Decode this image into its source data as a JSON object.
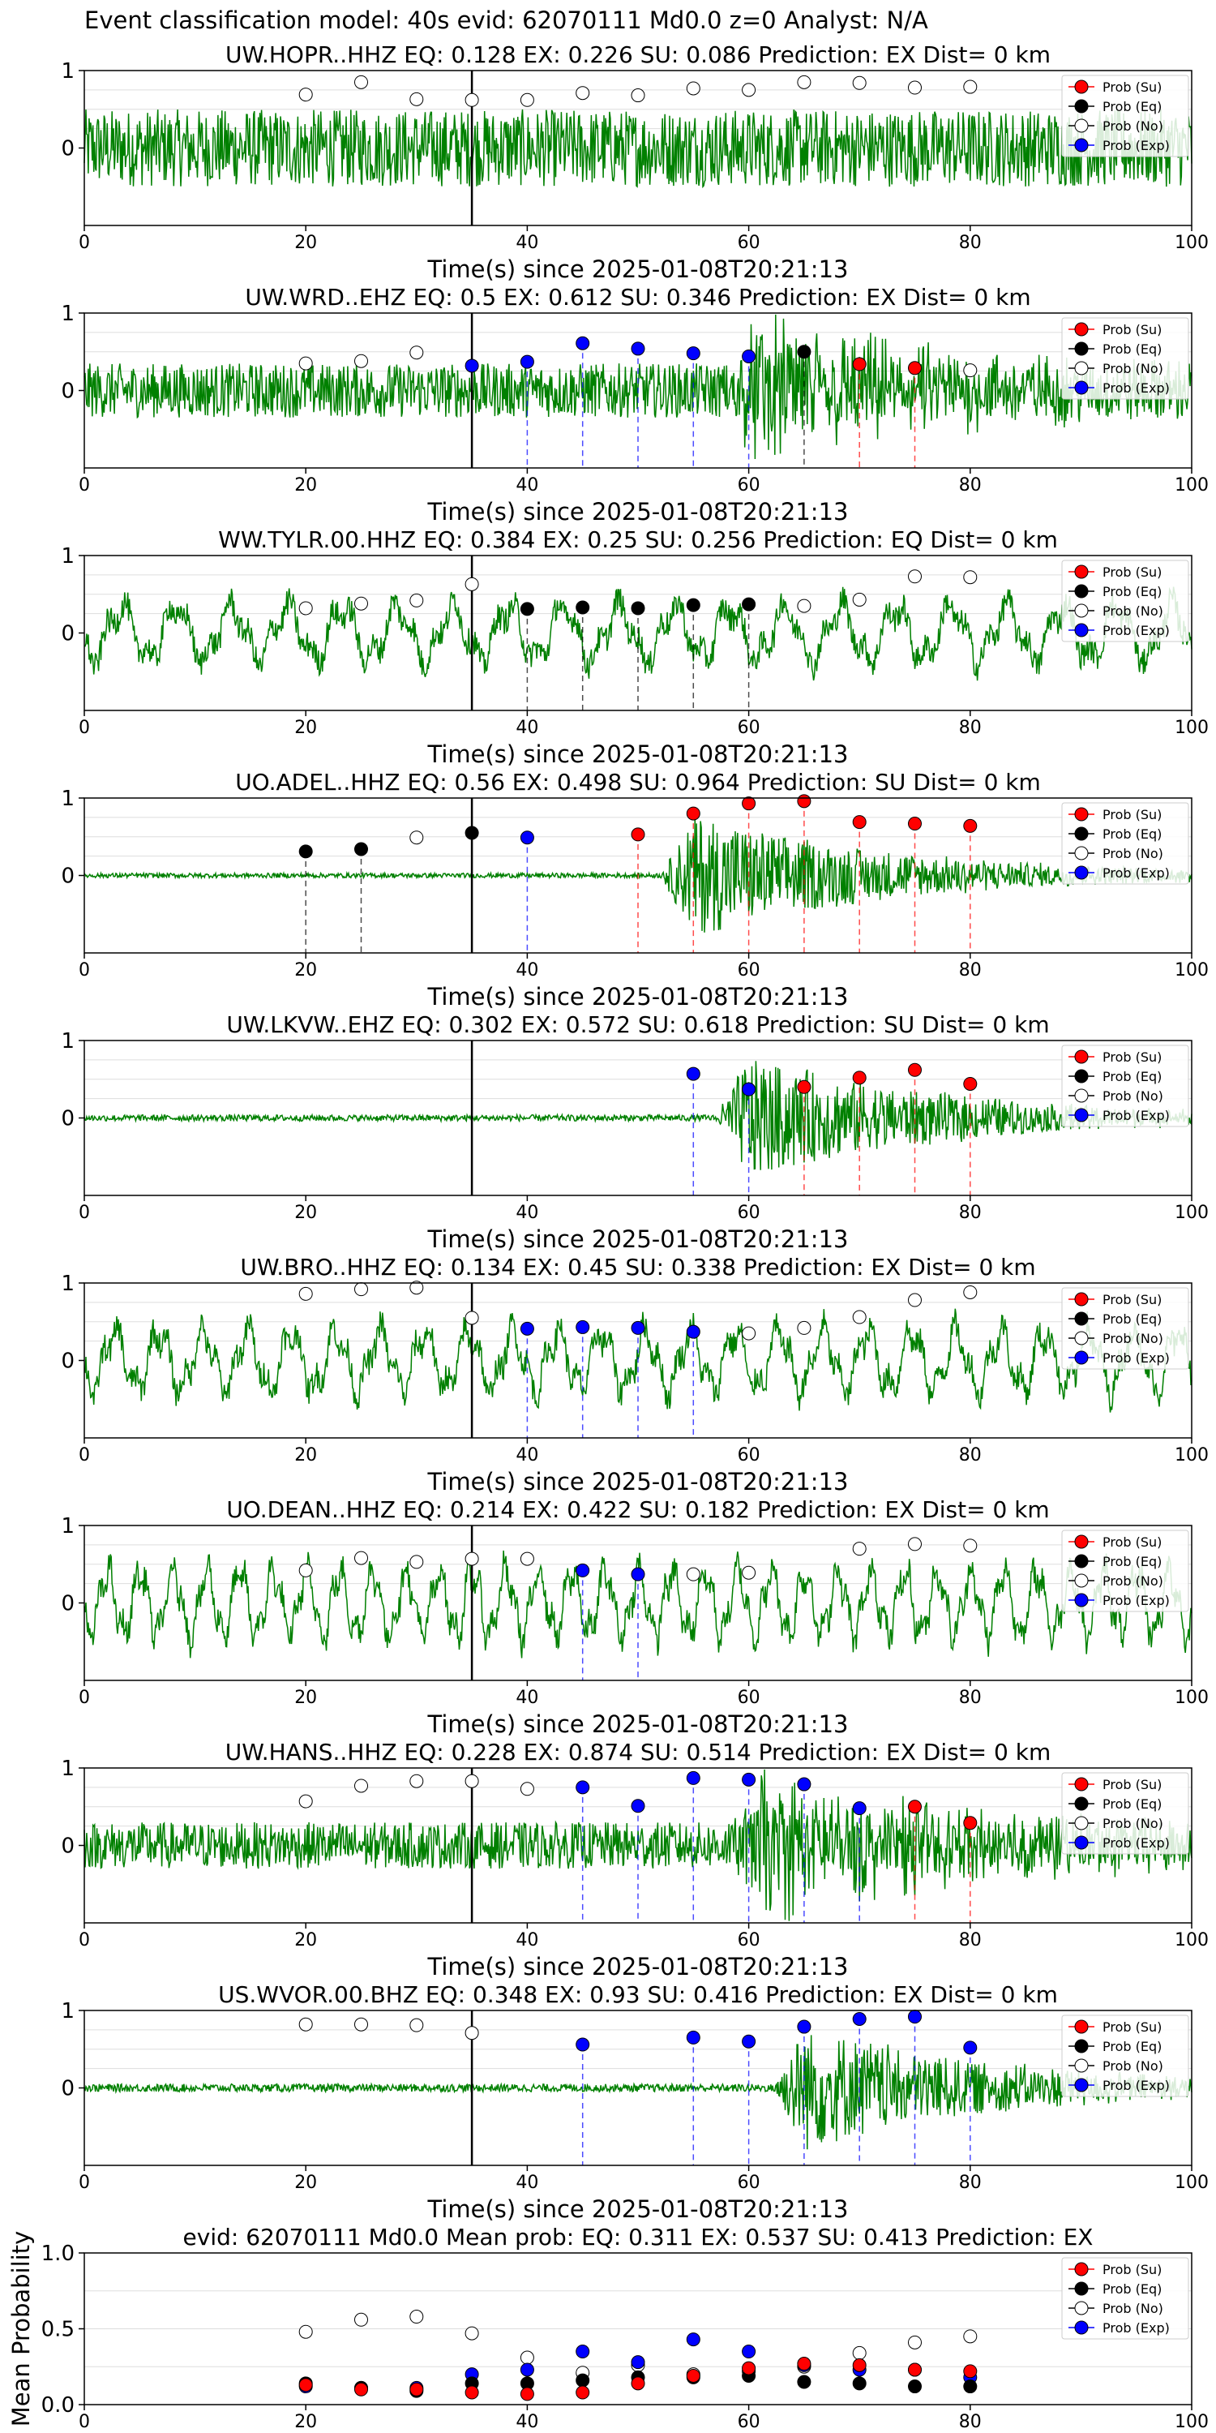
{
  "figure_title": "Event classification model: 40s evid: 62070111 Md0.0 z=0 Analyst: N/A",
  "colors": {
    "su": "#ff0000",
    "eq": "#000000",
    "no": "#ffffff",
    "exp": "#0000ff",
    "trace": "#008000",
    "grid": "#dddddd",
    "pick": "#000000"
  },
  "legend": [
    "Prob (Su)",
    "Prob (Eq)",
    "Prob (No)",
    "Prob (Exp)"
  ],
  "chart_data": [
    {
      "type": "line",
      "title": "UW.HOPR..HHZ   EQ: 0.128  EX: 0.226  SU: 0.086   Prediction: EX    Dist= 0 km",
      "xlabel": "Time(s) since 2025-01-08T20:21:13",
      "ylabel": "",
      "xlim": [
        0,
        100
      ],
      "ylim": [
        -1,
        1
      ],
      "xticks": [
        "0",
        "20",
        "40",
        "60",
        "80",
        "100"
      ],
      "yticks": [
        "0",
        "1"
      ],
      "waveform": {
        "style": "noisy",
        "amplitude": 0.5,
        "period_s": 0,
        "onset_s": 0
      },
      "pick_time": 35,
      "points": [
        {
          "t": 20,
          "p": 0.69,
          "class": "no"
        },
        {
          "t": 25,
          "p": 0.85,
          "class": "no"
        },
        {
          "t": 30,
          "p": 0.63,
          "class": "no"
        },
        {
          "t": 35,
          "p": 0.62,
          "class": "no"
        },
        {
          "t": 40,
          "p": 0.62,
          "class": "no"
        },
        {
          "t": 45,
          "p": 0.71,
          "class": "no"
        },
        {
          "t": 50,
          "p": 0.68,
          "class": "no"
        },
        {
          "t": 55,
          "p": 0.77,
          "class": "no"
        },
        {
          "t": 60,
          "p": 0.75,
          "class": "no"
        },
        {
          "t": 65,
          "p": 0.85,
          "class": "no"
        },
        {
          "t": 70,
          "p": 0.84,
          "class": "no"
        },
        {
          "t": 75,
          "p": 0.78,
          "class": "no"
        },
        {
          "t": 80,
          "p": 0.79,
          "class": "no"
        }
      ]
    },
    {
      "type": "line",
      "title": "UW.WRD..EHZ   EQ: 0.5  EX: 0.612  SU: 0.346   Prediction: EX    Dist= 0 km",
      "xlabel": "Time(s) since 2025-01-08T20:21:13",
      "ylabel": "",
      "xlim": [
        0,
        100
      ],
      "ylim": [
        -1,
        1
      ],
      "xticks": [
        "0",
        "20",
        "40",
        "60",
        "80",
        "100"
      ],
      "yticks": [
        "0",
        "1"
      ],
      "waveform": {
        "style": "noisy",
        "amplitude": 0.35,
        "period_s": 0,
        "onset_s": 58
      },
      "pick_time": 35,
      "points": [
        {
          "t": 20,
          "p": 0.35,
          "class": "no"
        },
        {
          "t": 25,
          "p": 0.38,
          "class": "no"
        },
        {
          "t": 30,
          "p": 0.49,
          "class": "no"
        },
        {
          "t": 35,
          "p": 0.32,
          "class": "exp"
        },
        {
          "t": 40,
          "p": 0.37,
          "class": "exp"
        },
        {
          "t": 45,
          "p": 0.61,
          "class": "exp"
        },
        {
          "t": 50,
          "p": 0.54,
          "class": "exp"
        },
        {
          "t": 55,
          "p": 0.48,
          "class": "exp"
        },
        {
          "t": 60,
          "p": 0.44,
          "class": "exp"
        },
        {
          "t": 65,
          "p": 0.5,
          "class": "eq"
        },
        {
          "t": 70,
          "p": 0.34,
          "class": "su"
        },
        {
          "t": 75,
          "p": 0.29,
          "class": "su"
        },
        {
          "t": 80,
          "p": 0.26,
          "class": "no"
        }
      ]
    },
    {
      "type": "line",
      "title": "WW.TYLR.00.HHZ   EQ: 0.384  EX: 0.25  SU: 0.256   Prediction: EQ    Dist= 0 km",
      "xlabel": "Time(s) since 2025-01-08T20:21:13",
      "ylabel": "",
      "xlim": [
        0,
        100
      ],
      "ylim": [
        -1,
        1
      ],
      "xticks": [
        "0",
        "20",
        "40",
        "60",
        "80",
        "100"
      ],
      "yticks": [
        "0",
        "1"
      ],
      "waveform": {
        "style": "wave",
        "amplitude": 0.45,
        "period_s": 5,
        "onset_s": 0
      },
      "pick_time": 35,
      "points": [
        {
          "t": 20,
          "p": 0.32,
          "class": "no"
        },
        {
          "t": 25,
          "p": 0.38,
          "class": "no"
        },
        {
          "t": 30,
          "p": 0.42,
          "class": "no"
        },
        {
          "t": 35,
          "p": 0.63,
          "class": "no"
        },
        {
          "t": 40,
          "p": 0.31,
          "class": "eq"
        },
        {
          "t": 45,
          "p": 0.33,
          "class": "eq"
        },
        {
          "t": 50,
          "p": 0.32,
          "class": "eq"
        },
        {
          "t": 55,
          "p": 0.36,
          "class": "eq"
        },
        {
          "t": 60,
          "p": 0.37,
          "class": "eq"
        },
        {
          "t": 65,
          "p": 0.35,
          "class": "no"
        },
        {
          "t": 70,
          "p": 0.43,
          "class": "no"
        },
        {
          "t": 75,
          "p": 0.73,
          "class": "no"
        },
        {
          "t": 80,
          "p": 0.72,
          "class": "no"
        }
      ]
    },
    {
      "type": "line",
      "title": "UO.ADEL..HHZ   EQ: 0.56  EX: 0.498  SU: 0.964   Prediction: SU    Dist= 0 km",
      "xlabel": "Time(s) since 2025-01-08T20:21:13",
      "ylabel": "",
      "xlim": [
        0,
        100
      ],
      "ylim": [
        -1,
        1
      ],
      "xticks": [
        "0",
        "20",
        "40",
        "60",
        "80",
        "100"
      ],
      "yticks": [
        "0",
        "1"
      ],
      "waveform": {
        "style": "quiet",
        "amplitude": 0.03,
        "period_s": 0,
        "onset_s": 52
      },
      "pick_time": 35,
      "points": [
        {
          "t": 20,
          "p": 0.31,
          "class": "eq"
        },
        {
          "t": 25,
          "p": 0.34,
          "class": "eq"
        },
        {
          "t": 30,
          "p": 0.49,
          "class": "no"
        },
        {
          "t": 35,
          "p": 0.55,
          "class": "eq"
        },
        {
          "t": 40,
          "p": 0.49,
          "class": "exp"
        },
        {
          "t": 50,
          "p": 0.53,
          "class": "su"
        },
        {
          "t": 55,
          "p": 0.8,
          "class": "su"
        },
        {
          "t": 60,
          "p": 0.93,
          "class": "su"
        },
        {
          "t": 65,
          "p": 0.96,
          "class": "su"
        },
        {
          "t": 70,
          "p": 0.69,
          "class": "su"
        },
        {
          "t": 75,
          "p": 0.67,
          "class": "su"
        },
        {
          "t": 80,
          "p": 0.64,
          "class": "su"
        }
      ]
    },
    {
      "type": "line",
      "title": "UW.LKVW..EHZ   EQ: 0.302  EX: 0.572  SU: 0.618   Prediction: SU    Dist= 0 km",
      "xlabel": "Time(s) since 2025-01-08T20:21:13",
      "ylabel": "",
      "xlim": [
        0,
        100
      ],
      "ylim": [
        -1,
        1
      ],
      "xticks": [
        "0",
        "20",
        "40",
        "60",
        "80",
        "100"
      ],
      "yticks": [
        "0",
        "1"
      ],
      "waveform": {
        "style": "quiet",
        "amplitude": 0.04,
        "period_s": 0,
        "onset_s": 57
      },
      "pick_time": 35,
      "points": [
        {
          "t": 55,
          "p": 0.57,
          "class": "exp"
        },
        {
          "t": 60,
          "p": 0.37,
          "class": "exp"
        },
        {
          "t": 65,
          "p": 0.4,
          "class": "su"
        },
        {
          "t": 70,
          "p": 0.52,
          "class": "su"
        },
        {
          "t": 75,
          "p": 0.62,
          "class": "su"
        },
        {
          "t": 80,
          "p": 0.44,
          "class": "su"
        }
      ]
    },
    {
      "type": "line",
      "title": "UW.BRO..HHZ   EQ: 0.134  EX: 0.45  SU: 0.338   Prediction: EX    Dist= 0 km",
      "xlabel": "Time(s) since 2025-01-08T20:21:13",
      "ylabel": "",
      "xlim": [
        0,
        100
      ],
      "ylim": [
        -1,
        1
      ],
      "xticks": [
        "0",
        "20",
        "40",
        "60",
        "80",
        "100"
      ],
      "yticks": [
        "0",
        "1"
      ],
      "waveform": {
        "style": "wave",
        "amplitude": 0.5,
        "period_s": 4,
        "onset_s": 0
      },
      "pick_time": 35,
      "points": [
        {
          "t": 20,
          "p": 0.86,
          "class": "no"
        },
        {
          "t": 25,
          "p": 0.92,
          "class": "no"
        },
        {
          "t": 30,
          "p": 0.94,
          "class": "no"
        },
        {
          "t": 35,
          "p": 0.55,
          "class": "no"
        },
        {
          "t": 40,
          "p": 0.41,
          "class": "exp"
        },
        {
          "t": 45,
          "p": 0.43,
          "class": "exp"
        },
        {
          "t": 50,
          "p": 0.42,
          "class": "exp"
        },
        {
          "t": 55,
          "p": 0.37,
          "class": "exp"
        },
        {
          "t": 60,
          "p": 0.35,
          "class": "no"
        },
        {
          "t": 65,
          "p": 0.42,
          "class": "no"
        },
        {
          "t": 70,
          "p": 0.56,
          "class": "no"
        },
        {
          "t": 75,
          "p": 0.78,
          "class": "no"
        },
        {
          "t": 80,
          "p": 0.88,
          "class": "no"
        }
      ]
    },
    {
      "type": "line",
      "title": "UO.DEAN..HHZ   EQ: 0.214  EX: 0.422  SU: 0.182   Prediction: EX    Dist= 0 km",
      "xlabel": "Time(s) since 2025-01-08T20:21:13",
      "ylabel": "",
      "xlim": [
        0,
        100
      ],
      "ylim": [
        -1,
        1
      ],
      "xticks": [
        "0",
        "20",
        "40",
        "60",
        "80",
        "100"
      ],
      "yticks": [
        "0",
        "1"
      ],
      "waveform": {
        "style": "wave",
        "amplitude": 0.55,
        "period_s": 3,
        "onset_s": 0
      },
      "pick_time": 35,
      "points": [
        {
          "t": 20,
          "p": 0.42,
          "class": "no"
        },
        {
          "t": 25,
          "p": 0.58,
          "class": "no"
        },
        {
          "t": 30,
          "p": 0.53,
          "class": "no"
        },
        {
          "t": 35,
          "p": 0.57,
          "class": "no"
        },
        {
          "t": 40,
          "p": 0.57,
          "class": "no"
        },
        {
          "t": 45,
          "p": 0.42,
          "class": "exp"
        },
        {
          "t": 50,
          "p": 0.37,
          "class": "exp"
        },
        {
          "t": 55,
          "p": 0.37,
          "class": "no"
        },
        {
          "t": 60,
          "p": 0.39,
          "class": "no"
        },
        {
          "t": 70,
          "p": 0.7,
          "class": "no"
        },
        {
          "t": 75,
          "p": 0.76,
          "class": "no"
        },
        {
          "t": 80,
          "p": 0.74,
          "class": "no"
        }
      ]
    },
    {
      "type": "line",
      "title": "UW.HANS..HHZ   EQ: 0.228  EX: 0.874  SU: 0.514   Prediction: EX    Dist= 0 km",
      "xlabel": "Time(s) since 2025-01-08T20:21:13",
      "ylabel": "",
      "xlim": [
        0,
        100
      ],
      "ylim": [
        -1,
        1
      ],
      "xticks": [
        "0",
        "20",
        "40",
        "60",
        "80",
        "100"
      ],
      "yticks": [
        "0",
        "1"
      ],
      "waveform": {
        "style": "noisy",
        "amplitude": 0.3,
        "period_s": 0,
        "onset_s": 58
      },
      "pick_time": 35,
      "points": [
        {
          "t": 20,
          "p": 0.57,
          "class": "no"
        },
        {
          "t": 25,
          "p": 0.77,
          "class": "no"
        },
        {
          "t": 30,
          "p": 0.83,
          "class": "no"
        },
        {
          "t": 35,
          "p": 0.83,
          "class": "no"
        },
        {
          "t": 40,
          "p": 0.73,
          "class": "no"
        },
        {
          "t": 45,
          "p": 0.75,
          "class": "exp"
        },
        {
          "t": 50,
          "p": 0.51,
          "class": "exp"
        },
        {
          "t": 55,
          "p": 0.87,
          "class": "exp"
        },
        {
          "t": 60,
          "p": 0.85,
          "class": "exp"
        },
        {
          "t": 65,
          "p": 0.79,
          "class": "exp"
        },
        {
          "t": 70,
          "p": 0.48,
          "class": "exp"
        },
        {
          "t": 75,
          "p": 0.5,
          "class": "su"
        },
        {
          "t": 80,
          "p": 0.29,
          "class": "su"
        }
      ]
    },
    {
      "type": "line",
      "title": "US.WVOR.00.BHZ   EQ: 0.348  EX: 0.93  SU: 0.416   Prediction: EX    Dist= 0 km",
      "xlabel": "Time(s) since 2025-01-08T20:21:13",
      "ylabel": "",
      "xlim": [
        0,
        100
      ],
      "ylim": [
        -1,
        1
      ],
      "xticks": [
        "0",
        "20",
        "40",
        "60",
        "80",
        "100"
      ],
      "yticks": [
        "0",
        "1"
      ],
      "waveform": {
        "style": "quiet",
        "amplitude": 0.05,
        "period_s": 0,
        "onset_s": 62
      },
      "pick_time": 35,
      "points": [
        {
          "t": 20,
          "p": 0.82,
          "class": "no"
        },
        {
          "t": 25,
          "p": 0.82,
          "class": "no"
        },
        {
          "t": 30,
          "p": 0.81,
          "class": "no"
        },
        {
          "t": 35,
          "p": 0.71,
          "class": "no"
        },
        {
          "t": 45,
          "p": 0.56,
          "class": "exp"
        },
        {
          "t": 55,
          "p": 0.65,
          "class": "exp"
        },
        {
          "t": 60,
          "p": 0.6,
          "class": "exp"
        },
        {
          "t": 65,
          "p": 0.79,
          "class": "exp"
        },
        {
          "t": 70,
          "p": 0.89,
          "class": "exp"
        },
        {
          "t": 75,
          "p": 0.92,
          "class": "exp"
        },
        {
          "t": 80,
          "p": 0.52,
          "class": "exp"
        }
      ]
    },
    {
      "type": "scatter",
      "title": "evid: 62070111  Md0.0   Mean prob:   EQ: 0.311  EX: 0.537  SU: 0.413   Prediction: EX",
      "xlabel": "",
      "ylabel": "Mean Probability",
      "xlim": [
        0,
        100
      ],
      "ylim": [
        0,
        1
      ],
      "xticks": [
        "0",
        "20",
        "40",
        "60",
        "80",
        "100"
      ],
      "yticks": [
        "0.0",
        "0.5",
        "1.0"
      ],
      "series": [
        {
          "class": "no",
          "x": [
            20,
            25,
            30,
            35,
            40,
            45,
            50,
            55,
            60,
            65,
            70,
            75,
            80
          ],
          "values": [
            0.48,
            0.56,
            0.58,
            0.47,
            0.31,
            0.21,
            0.26,
            0.2,
            0.22,
            0.25,
            0.34,
            0.41,
            0.45
          ]
        },
        {
          "class": "exp",
          "x": [
            20,
            25,
            30,
            35,
            40,
            45,
            50,
            55,
            60,
            65,
            70,
            75,
            80
          ],
          "values": [
            0.12,
            0.11,
            0.11,
            0.2,
            0.23,
            0.35,
            0.28,
            0.43,
            0.35,
            0.26,
            0.23,
            0.23,
            0.18
          ]
        },
        {
          "class": "eq",
          "x": [
            20,
            25,
            30,
            35,
            40,
            45,
            50,
            55,
            60,
            65,
            70,
            75,
            80
          ],
          "values": [
            0.14,
            0.11,
            0.09,
            0.14,
            0.14,
            0.16,
            0.18,
            0.18,
            0.19,
            0.15,
            0.14,
            0.12,
            0.12
          ]
        },
        {
          "class": "su",
          "x": [
            20,
            25,
            30,
            35,
            40,
            45,
            50,
            55,
            60,
            65,
            70,
            75,
            80
          ],
          "values": [
            0.13,
            0.1,
            0.1,
            0.08,
            0.07,
            0.08,
            0.14,
            0.19,
            0.24,
            0.27,
            0.26,
            0.23,
            0.22
          ]
        }
      ]
    }
  ]
}
